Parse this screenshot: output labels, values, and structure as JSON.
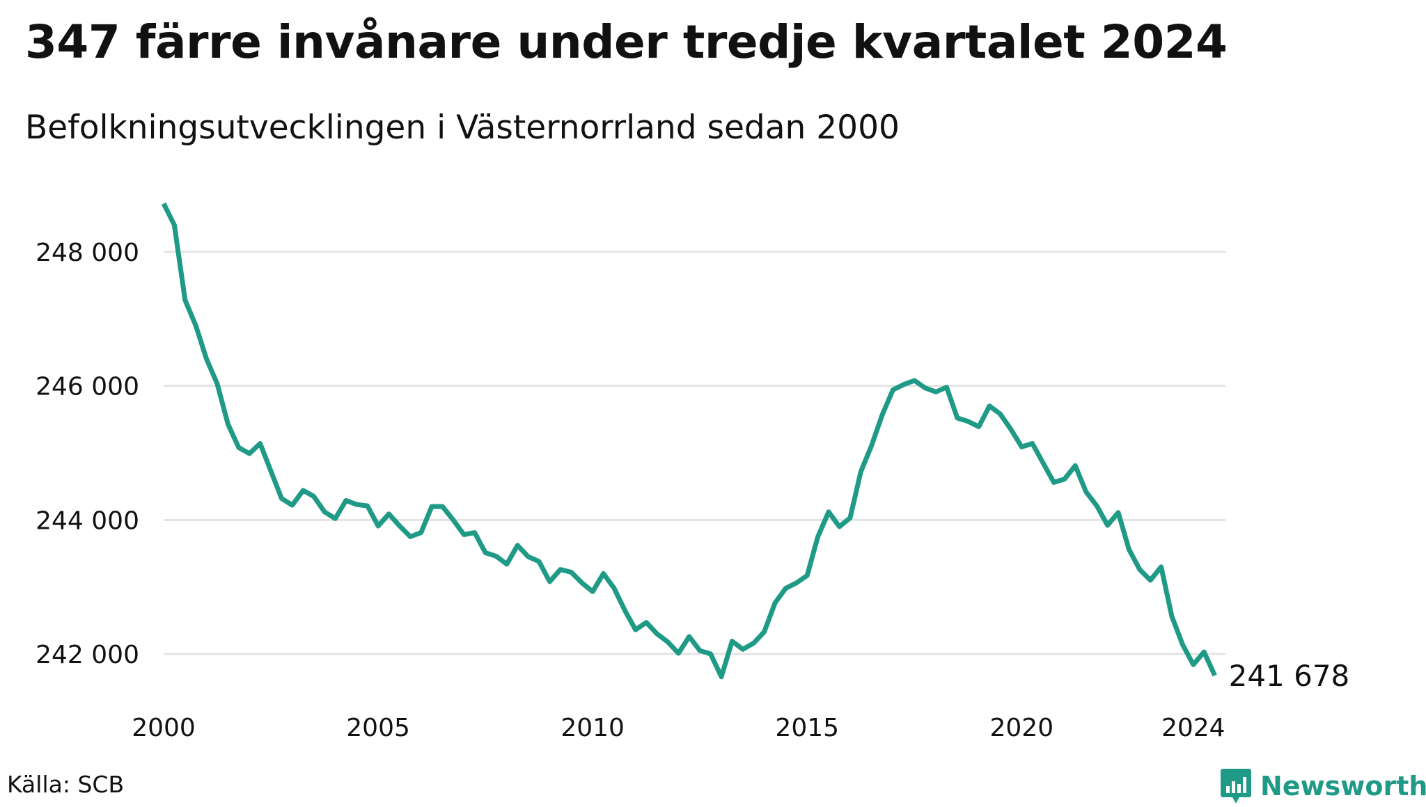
{
  "header": {
    "title": "347 färre invånare under tredje kvartalet 2024",
    "subtitle": "Befolkningsutvecklingen i Västernorrland sedan 2000"
  },
  "footer": {
    "source": "Källa: SCB",
    "brand": "Newsworthy",
    "brand_icon": "newsworthy-logo-icon"
  },
  "colors": {
    "line": "#1f9a86",
    "grid": "#e3e3e3",
    "brand": "#1f9a86"
  },
  "chart_data": {
    "type": "line",
    "title": "347 färre invånare under tredje kvartalet 2024",
    "subtitle": "Befolkningsutvecklingen i Västernorrland sedan 2000",
    "xlabel": "",
    "ylabel": "",
    "frequency": "quarterly",
    "x_start": 2000.0,
    "x_step": 0.25,
    "xlim": [
      2000,
      2024.75
    ],
    "ylim": [
      241400,
      248900
    ],
    "x_ticks": [
      2000,
      2005,
      2010,
      2015,
      2020,
      2024
    ],
    "x_tick_labels": [
      "2000",
      "2005",
      "2010",
      "2015",
      "2020",
      "2024"
    ],
    "y_ticks": [
      242000,
      244000,
      246000,
      248000
    ],
    "y_tick_labels": [
      "242 000",
      "244 000",
      "246 000",
      "248 000"
    ],
    "grid": "horizontal",
    "legend": "none",
    "end_label": "241 678",
    "series": [
      {
        "values": [
          248720,
          248400,
          247280,
          246900,
          246400,
          246030,
          245430,
          245080,
          244990,
          245140,
          244730,
          244320,
          244220,
          244440,
          244350,
          244120,
          244020,
          244290,
          244230,
          244210,
          243910,
          244090,
          243910,
          243750,
          243810,
          244200,
          244200,
          244000,
          243780,
          243810,
          243510,
          243460,
          243340,
          243620,
          243450,
          243380,
          243080,
          243260,
          243220,
          243060,
          242930,
          243200,
          242980,
          242650,
          242360,
          242470,
          242300,
          242180,
          242010,
          242260,
          242050,
          242000,
          241660,
          242190,
          242070,
          242160,
          242330,
          242760,
          242980,
          243060,
          243170,
          243750,
          244120,
          243900,
          244030,
          244720,
          245110,
          245570,
          245940,
          246020,
          246080,
          245970,
          245910,
          245980,
          245520,
          245470,
          245390,
          245700,
          245580,
          245350,
          245090,
          245140,
          244850,
          244560,
          244610,
          244810,
          244420,
          244210,
          243920,
          244110,
          243560,
          243260,
          243100,
          243300,
          242560,
          242140,
          241840,
          242030,
          241678
        ]
      }
    ]
  }
}
